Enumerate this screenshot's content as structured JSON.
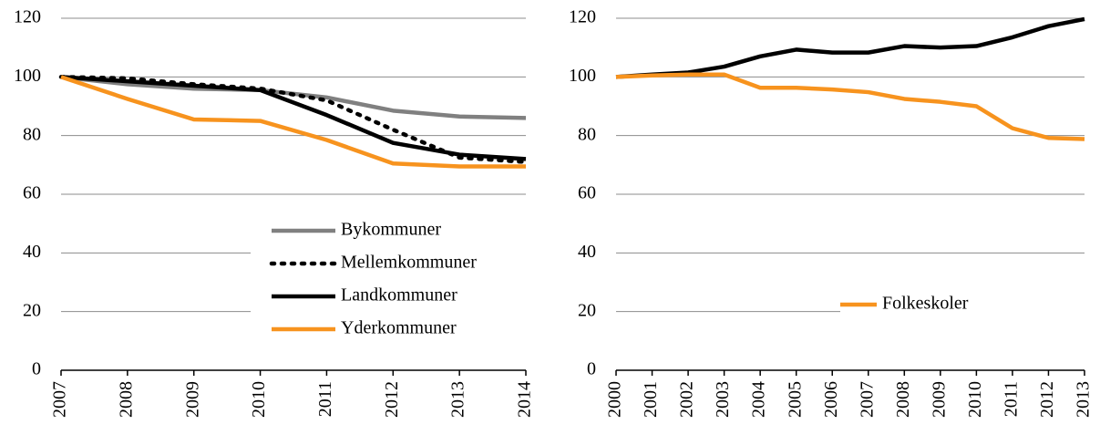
{
  "chart_data": [
    {
      "type": "line",
      "categories": [
        "2007",
        "2008",
        "2009",
        "2010",
        "2011",
        "2012",
        "2013",
        "2014"
      ],
      "ylim": [
        0,
        120
      ],
      "yticks": [
        0,
        20,
        40,
        60,
        80,
        100,
        120
      ],
      "grid": true,
      "legend": "lower right",
      "series": [
        {
          "name": "Bykommuner",
          "color": "#808080",
          "dash": "solid",
          "values": [
            100,
            97.5,
            96,
            95.5,
            93,
            88.5,
            86.5,
            86
          ]
        },
        {
          "name": "Mellemkommuner",
          "color": "#000000",
          "dash": "dotted",
          "values": [
            100,
            99.5,
            97.5,
            96,
            92,
            82,
            72.5,
            71
          ]
        },
        {
          "name": "Landkommuner",
          "color": "#000000",
          "dash": "solid",
          "values": [
            100,
            98.5,
            97,
            95.5,
            87,
            77.5,
            73.5,
            72
          ]
        },
        {
          "name": "Yderkommuner",
          "color": "#f7931e",
          "dash": "solid",
          "values": [
            100,
            92.5,
            85.5,
            85,
            78.5,
            70.5,
            69.5,
            69.5
          ]
        }
      ]
    },
    {
      "type": "line",
      "categories": [
        "2000",
        "2001",
        "2002",
        "2003",
        "2004",
        "2005",
        "2006",
        "2007",
        "2008",
        "2009",
        "2010",
        "2011",
        "2012",
        "2013"
      ],
      "ylim": [
        0,
        120
      ],
      "yticks": [
        0,
        20,
        40,
        60,
        80,
        100,
        120
      ],
      "grid": true,
      "legend": "lower right",
      "series": [
        {
          "color": "#000000",
          "dash": "solid",
          "values": [
            100,
            100.8,
            101.5,
            103.5,
            107,
            109.3,
            108.3,
            108.3,
            110.5,
            110,
            110.5,
            113.5,
            117.3,
            119.7
          ]
        },
        {
          "name": "Folkeskoler",
          "color": "#f7931e",
          "dash": "solid",
          "values": [
            100,
            100.5,
            100.8,
            100.8,
            96.3,
            96.3,
            95.7,
            94.8,
            92.5,
            91.5,
            90,
            82.5,
            79.2,
            78.8
          ]
        }
      ]
    }
  ]
}
